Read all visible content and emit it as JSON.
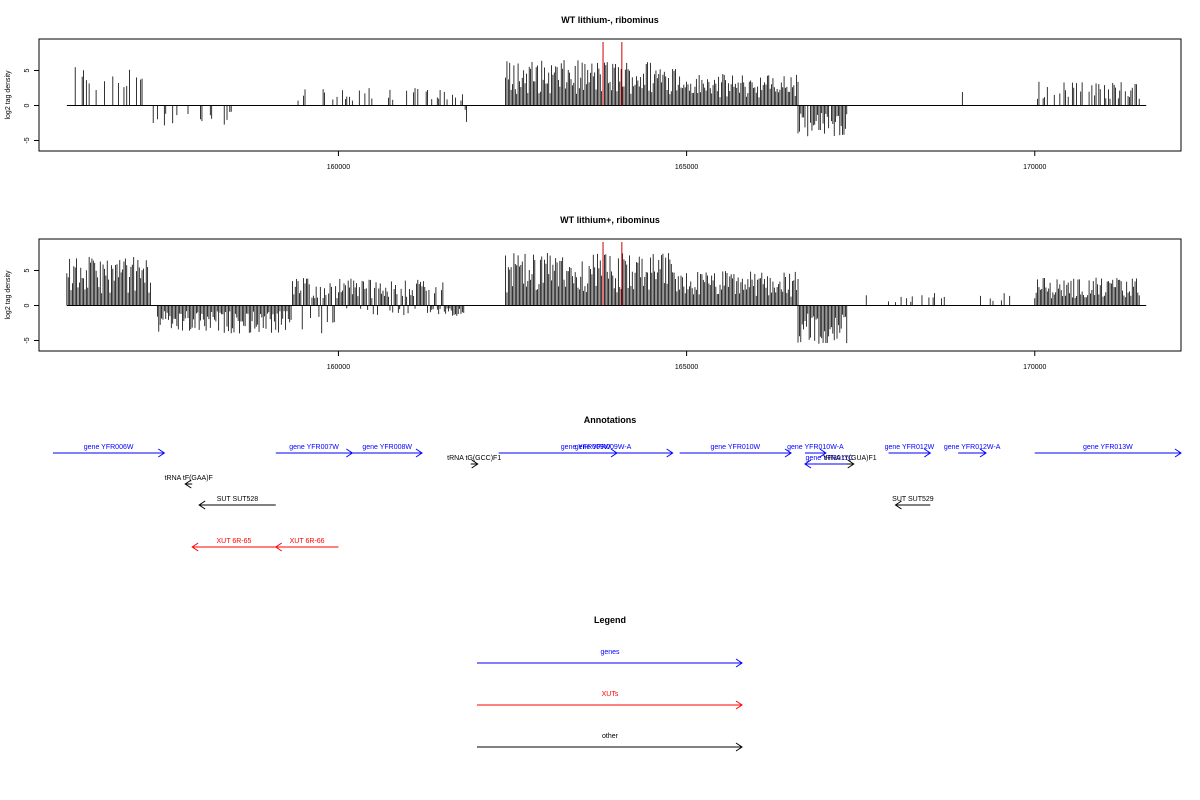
{
  "colors": {
    "gene": "#0000ff",
    "xut": "#ff0000",
    "other": "#000000",
    "marker": "#cc0000"
  },
  "chart_data": [
    {
      "type": "bar",
      "title": "WT lithium-, ribominus",
      "ylabel": "log2 tag density",
      "xlim": [
        155700,
        172100
      ],
      "ylim": [
        -6.5,
        9.5
      ],
      "x_ticks": [
        160000,
        165000,
        170000
      ],
      "x_tick_labels": [
        "160000",
        "165000",
        "170000"
      ],
      "y_ticks": [
        -5,
        0,
        5
      ],
      "y_tick_labels": [
        "-5",
        "0",
        "5"
      ],
      "markers": [
        163800,
        164070
      ],
      "grid": false,
      "series": [
        {
          "x_range": [
            156100,
            162300
          ],
          "density": 0.3,
          "positive_regions": [
            [
              156100,
              157200,
              6.0
            ],
            [
              159300,
              161800,
              2.5
            ]
          ],
          "negative_regions": [
            [
              157300,
              158500,
              -3.0
            ],
            [
              161700,
              161850,
              -2.5
            ]
          ]
        },
        {
          "x_range": [
            162400,
            166600
          ],
          "density": 1.0,
          "positive_regions": [
            [
              162400,
              164900,
              6.5
            ],
            [
              164900,
              166600,
              4.5
            ]
          ],
          "negative_regions": []
        },
        {
          "x_range": [
            166600,
            167300
          ],
          "density": 0.9,
          "positive_regions": [],
          "negative_regions": [
            [
              166600,
              167300,
              -4.5
            ]
          ]
        },
        {
          "x_range": [
            168900,
            169000
          ],
          "density": 0.2,
          "positive_regions": [
            [
              168900,
              169000,
              3.0
            ]
          ],
          "negative_regions": []
        },
        {
          "x_range": [
            170000,
            171500
          ],
          "density": 0.5,
          "positive_regions": [
            [
              170000,
              171500,
              3.5
            ]
          ],
          "negative_regions": []
        }
      ]
    },
    {
      "type": "bar",
      "title": "WT lithium+, ribominus",
      "ylabel": "log2 tag density",
      "xlim": [
        155700,
        172100
      ],
      "ylim": [
        -6.5,
        9.5
      ],
      "x_ticks": [
        160000,
        165000,
        170000
      ],
      "x_tick_labels": [
        "160000",
        "165000",
        "170000"
      ],
      "y_ticks": [
        -5,
        0,
        5
      ],
      "y_tick_labels": [
        "-5",
        "0",
        "5"
      ],
      "markers": [
        163800,
        164070
      ],
      "grid": false,
      "series": [
        {
          "x_range": [
            156100,
            162300
          ],
          "density": 1.0,
          "positive_regions": [
            [
              156100,
              157300,
              7.0
            ],
            [
              159300,
              161500,
              4.0
            ]
          ],
          "negative_regions": [
            [
              157400,
              160000,
              -4.0
            ],
            [
              160000,
              161800,
              -1.5
            ]
          ]
        },
        {
          "x_range": [
            162400,
            166600
          ],
          "density": 1.0,
          "positive_regions": [
            [
              162400,
              164900,
              7.5
            ],
            [
              164900,
              166600,
              5.0
            ]
          ],
          "negative_regions": []
        },
        {
          "x_range": [
            166600,
            167300
          ],
          "density": 1.0,
          "positive_regions": [],
          "negative_regions": [
            [
              166600,
              167300,
              -5.5
            ]
          ]
        },
        {
          "x_range": [
            167300,
            169800
          ],
          "density": 0.15,
          "positive_regions": [
            [
              167300,
              169800,
              1.8
            ]
          ],
          "negative_regions": []
        },
        {
          "x_range": [
            170000,
            171500
          ],
          "density": 1.0,
          "positive_regions": [
            [
              170000,
              171500,
              4.0
            ]
          ],
          "negative_regions": []
        }
      ]
    }
  ],
  "annotations": {
    "title": "Annotations",
    "xlim": [
      155700,
      172100
    ],
    "features": [
      {
        "label": "gene YFR006W",
        "type": "gene",
        "start": 155900,
        "end": 157500,
        "strand": "+",
        "row": 0
      },
      {
        "label": "gene YFR007W",
        "type": "gene",
        "start": 159100,
        "end": 160200,
        "strand": "+",
        "row": 0
      },
      {
        "label": "gene YFR008W",
        "type": "gene",
        "start": 160200,
        "end": 161200,
        "strand": "+",
        "row": 0
      },
      {
        "label": "gene YFR009W",
        "type": "gene",
        "start": 162300,
        "end": 164800,
        "strand": "+",
        "row": 0
      },
      {
        "label": "gene YFR009W-A",
        "type": "gene",
        "start": 163600,
        "end": 164000,
        "strand": "+",
        "row": 0
      },
      {
        "label": "gene YFR010W",
        "type": "gene",
        "start": 164900,
        "end": 166500,
        "strand": "+",
        "row": 0
      },
      {
        "label": "gene YFR010W-A",
        "type": "gene",
        "start": 166700,
        "end": 167000,
        "strand": "+",
        "row": 0
      },
      {
        "label": "gene YFR011C",
        "type": "gene",
        "start": 166700,
        "end": 167400,
        "strand": "-",
        "row": 1
      },
      {
        "label": "gene YFR012W",
        "type": "gene",
        "start": 167900,
        "end": 168500,
        "strand": "+",
        "row": 0
      },
      {
        "label": "gene YFR012W-A",
        "type": "gene",
        "start": 168900,
        "end": 169300,
        "strand": "+",
        "row": 0
      },
      {
        "label": "gene YFR013W",
        "type": "gene",
        "start": 170000,
        "end": 172100,
        "strand": "+",
        "row": 0
      },
      {
        "label": "tRNA tF(GAA)F",
        "type": "other",
        "start": 157800,
        "end": 157900,
        "strand": "-",
        "row": 2
      },
      {
        "label": "tRNA tG(GCC)F1",
        "type": "other",
        "start": 161900,
        "end": 162000,
        "strand": "+",
        "row": 1
      },
      {
        "label": "tRNA tY(GUA)F1",
        "type": "other",
        "start": 167300,
        "end": 167400,
        "strand": "+",
        "row": 1
      },
      {
        "label": "SUT SUT528",
        "type": "other",
        "start": 158000,
        "end": 159100,
        "strand": "-",
        "row": 3
      },
      {
        "label": "SUT SUT529",
        "type": "other",
        "start": 168000,
        "end": 168500,
        "strand": "-",
        "row": 3
      },
      {
        "label": "XUT 6R-65",
        "type": "xut",
        "start": 157900,
        "end": 159100,
        "strand": "-",
        "row": 4
      },
      {
        "label": "XUT 6R-66",
        "type": "xut",
        "start": 159100,
        "end": 160000,
        "strand": "-",
        "row": 4
      }
    ]
  },
  "legend": {
    "title": "Legend",
    "items": [
      {
        "label": "genes",
        "type": "gene"
      },
      {
        "label": "XUTs",
        "type": "xut"
      },
      {
        "label": "other",
        "type": "other"
      }
    ]
  }
}
